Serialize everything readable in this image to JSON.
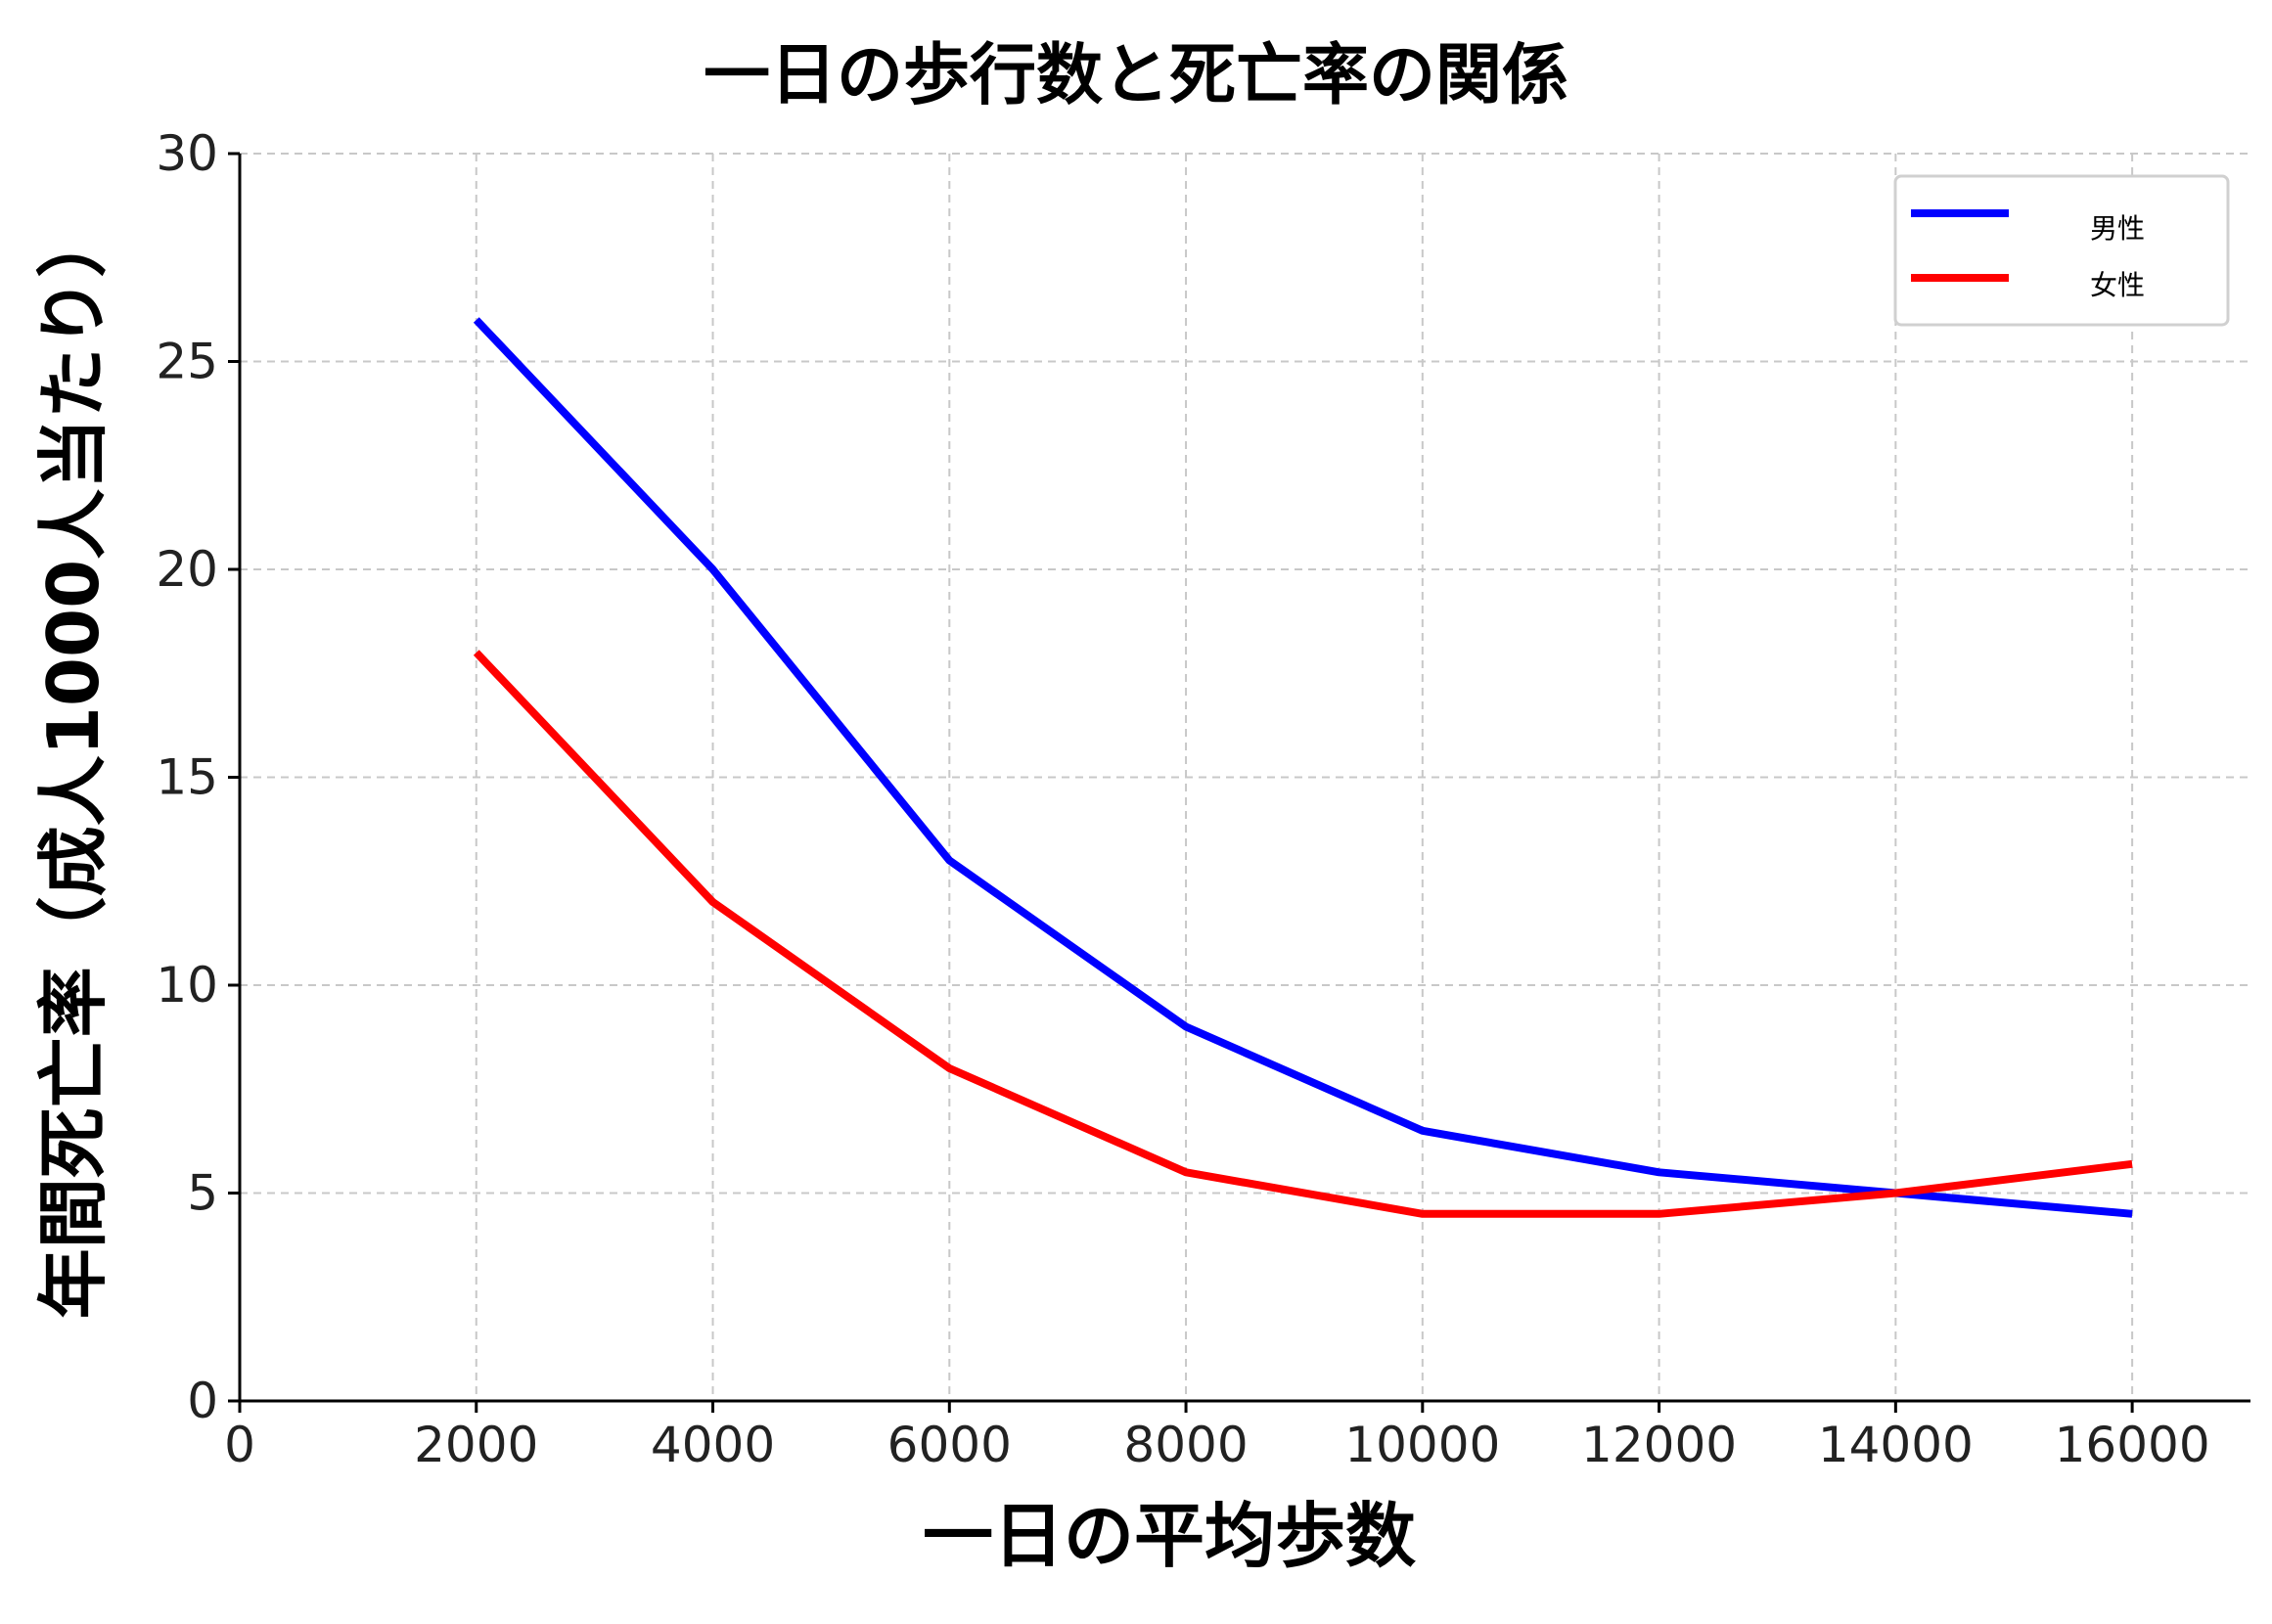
{
  "chart_data": {
    "type": "line",
    "title": "一日の歩行数と死亡率の関係",
    "xlabel": "一日の平均歩数",
    "ylabel": "年間死亡率（成人1000人当たり）",
    "xlim": [
      0,
      17000
    ],
    "ylim": [
      0,
      30
    ],
    "xticks": [
      0,
      2000,
      4000,
      6000,
      8000,
      10000,
      12000,
      14000,
      16000
    ],
    "yticks": [
      0,
      5,
      10,
      15,
      20,
      25,
      30
    ],
    "grid": true,
    "legend_position": "top-right",
    "x": [
      2000,
      4000,
      6000,
      8000,
      10000,
      12000,
      14000,
      16000
    ],
    "series": [
      {
        "name": "男性",
        "color": "#0000ff",
        "values": [
          26,
          20,
          13,
          9,
          6.5,
          5.5,
          5,
          4.5
        ]
      },
      {
        "name": "女性",
        "color": "#ff0000",
        "values": [
          18,
          12,
          8,
          5.5,
          4.5,
          4.5,
          5,
          5.7
        ]
      }
    ]
  }
}
